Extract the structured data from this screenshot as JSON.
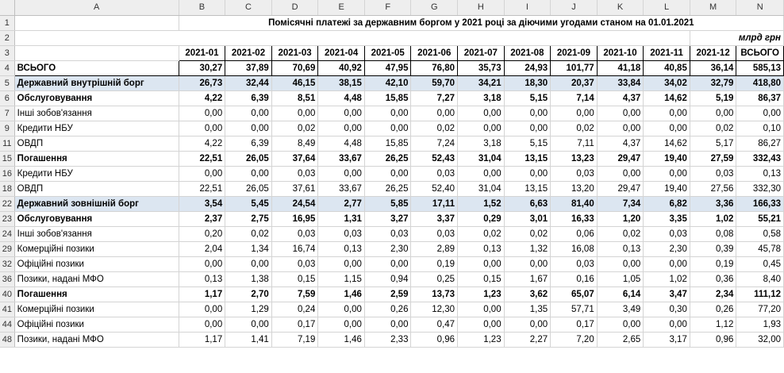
{
  "col_letters": [
    "A",
    "B",
    "C",
    "D",
    "E",
    "F",
    "G",
    "H",
    "I",
    "J",
    "K",
    "L",
    "M",
    "N"
  ],
  "title": "Помісячні платежі за державним боргом у 2021  році  за діючими угодами станом на 01.01.2021",
  "unit": "млрд грн",
  "row_numbers": {
    "title": "1",
    "unit": "2",
    "header": "3"
  },
  "headers": [
    "2021-01",
    "2021-02",
    "2021-03",
    "2021-04",
    "2021-05",
    "2021-06",
    "2021-07",
    "2021-08",
    "2021-09",
    "2021-10",
    "2021-11",
    "2021-12",
    "ВСЬОГО"
  ],
  "rows": [
    {
      "num": "4",
      "label": "ВСЬОГО",
      "level": 0,
      "bold": true,
      "blue": false,
      "values": [
        "30,27",
        "37,89",
        "70,69",
        "40,92",
        "47,95",
        "76,80",
        "35,73",
        "24,93",
        "101,77",
        "41,18",
        "40,85",
        "36,14",
        "585,13"
      ]
    },
    {
      "num": "5",
      "label": "Державний внутрішній борг",
      "level": 1,
      "bold": true,
      "blue": true,
      "values": [
        "26,73",
        "32,44",
        "46,15",
        "38,15",
        "42,10",
        "59,70",
        "34,21",
        "18,30",
        "20,37",
        "33,84",
        "34,02",
        "32,79",
        "418,80"
      ]
    },
    {
      "num": "6",
      "label": "Обслуговування",
      "level": 2,
      "bold": true,
      "blue": false,
      "values": [
        "4,22",
        "6,39",
        "8,51",
        "4,48",
        "15,85",
        "7,27",
        "3,18",
        "5,15",
        "7,14",
        "4,37",
        "14,62",
        "5,19",
        "86,37"
      ]
    },
    {
      "num": "7",
      "label": "Інші зобов'язання",
      "level": 3,
      "bold": false,
      "blue": false,
      "values": [
        "0,00",
        "0,00",
        "0,00",
        "0,00",
        "0,00",
        "0,00",
        "0,00",
        "0,00",
        "0,00",
        "0,00",
        "0,00",
        "0,00",
        "0,00"
      ]
    },
    {
      "num": "9",
      "label": "Кредити НБУ",
      "level": 3,
      "bold": false,
      "blue": false,
      "values": [
        "0,00",
        "0,00",
        "0,02",
        "0,00",
        "0,00",
        "0,02",
        "0,00",
        "0,00",
        "0,02",
        "0,00",
        "0,00",
        "0,02",
        "0,10"
      ]
    },
    {
      "num": "11",
      "label": "ОВДП",
      "level": 3,
      "bold": false,
      "blue": false,
      "values": [
        "4,22",
        "6,39",
        "8,49",
        "4,48",
        "15,85",
        "7,24",
        "3,18",
        "5,15",
        "7,11",
        "4,37",
        "14,62",
        "5,17",
        "86,27"
      ]
    },
    {
      "num": "15",
      "label": "Погашення",
      "level": 2,
      "bold": true,
      "blue": false,
      "values": [
        "22,51",
        "26,05",
        "37,64",
        "33,67",
        "26,25",
        "52,43",
        "31,04",
        "13,15",
        "13,23",
        "29,47",
        "19,40",
        "27,59",
        "332,43"
      ]
    },
    {
      "num": "16",
      "label": "Кредити НБУ",
      "level": 3,
      "bold": false,
      "blue": false,
      "values": [
        "0,00",
        "0,00",
        "0,03",
        "0,00",
        "0,00",
        "0,03",
        "0,00",
        "0,00",
        "0,03",
        "0,00",
        "0,00",
        "0,03",
        "0,13"
      ]
    },
    {
      "num": "18",
      "label": "ОВДП",
      "level": 3,
      "bold": false,
      "blue": false,
      "values": [
        "22,51",
        "26,05",
        "37,61",
        "33,67",
        "26,25",
        "52,40",
        "31,04",
        "13,15",
        "13,20",
        "29,47",
        "19,40",
        "27,56",
        "332,30"
      ]
    },
    {
      "num": "22",
      "label": "Державний зовнішній борг",
      "level": 1,
      "bold": true,
      "blue": true,
      "values": [
        "3,54",
        "5,45",
        "24,54",
        "2,77",
        "5,85",
        "17,11",
        "1,52",
        "6,63",
        "81,40",
        "7,34",
        "6,82",
        "3,36",
        "166,33"
      ]
    },
    {
      "num": "23",
      "label": "Обслуговування",
      "level": 2,
      "bold": true,
      "blue": false,
      "values": [
        "2,37",
        "2,75",
        "16,95",
        "1,31",
        "3,27",
        "3,37",
        "0,29",
        "3,01",
        "16,33",
        "1,20",
        "3,35",
        "1,02",
        "55,21"
      ]
    },
    {
      "num": "24",
      "label": "Інші зобов'язання",
      "level": 3,
      "bold": false,
      "blue": false,
      "values": [
        "0,20",
        "0,02",
        "0,03",
        "0,03",
        "0,03",
        "0,03",
        "0,02",
        "0,02",
        "0,06",
        "0,02",
        "0,03",
        "0,08",
        "0,58"
      ]
    },
    {
      "num": "29",
      "label": "Комерційні позики",
      "level": 3,
      "bold": false,
      "blue": false,
      "values": [
        "2,04",
        "1,34",
        "16,74",
        "0,13",
        "2,30",
        "2,89",
        "0,13",
        "1,32",
        "16,08",
        "0,13",
        "2,30",
        "0,39",
        "45,78"
      ]
    },
    {
      "num": "32",
      "label": "Офіційні позики",
      "level": 3,
      "bold": false,
      "blue": false,
      "values": [
        "0,00",
        "0,00",
        "0,03",
        "0,00",
        "0,00",
        "0,19",
        "0,00",
        "0,00",
        "0,03",
        "0,00",
        "0,00",
        "0,19",
        "0,45"
      ]
    },
    {
      "num": "36",
      "label": "Позики, надані МФО",
      "level": 3,
      "bold": false,
      "blue": false,
      "values": [
        "0,13",
        "1,38",
        "0,15",
        "1,15",
        "0,94",
        "0,25",
        "0,15",
        "1,67",
        "0,16",
        "1,05",
        "1,02",
        "0,36",
        "8,40"
      ]
    },
    {
      "num": "40",
      "label": "Погашення",
      "level": 2,
      "bold": true,
      "blue": false,
      "values": [
        "1,17",
        "2,70",
        "7,59",
        "1,46",
        "2,59",
        "13,73",
        "1,23",
        "3,62",
        "65,07",
        "6,14",
        "3,47",
        "2,34",
        "111,12"
      ]
    },
    {
      "num": "41",
      "label": "Комерційні позики",
      "level": 3,
      "bold": false,
      "blue": false,
      "values": [
        "0,00",
        "1,29",
        "0,24",
        "0,00",
        "0,26",
        "12,30",
        "0,00",
        "1,35",
        "57,71",
        "3,49",
        "0,30",
        "0,26",
        "77,20"
      ]
    },
    {
      "num": "44",
      "label": "Офіційні позики",
      "level": 3,
      "bold": false,
      "blue": false,
      "values": [
        "0,00",
        "0,00",
        "0,17",
        "0,00",
        "0,00",
        "0,47",
        "0,00",
        "0,00",
        "0,17",
        "0,00",
        "0,00",
        "1,12",
        "1,93"
      ]
    },
    {
      "num": "48",
      "label": "Позики, надані МФО",
      "level": 3,
      "bold": false,
      "blue": false,
      "values": [
        "1,17",
        "1,41",
        "7,19",
        "1,46",
        "2,33",
        "0,96",
        "1,23",
        "2,27",
        "7,20",
        "2,65",
        "3,17",
        "0,96",
        "32,00"
      ]
    }
  ]
}
